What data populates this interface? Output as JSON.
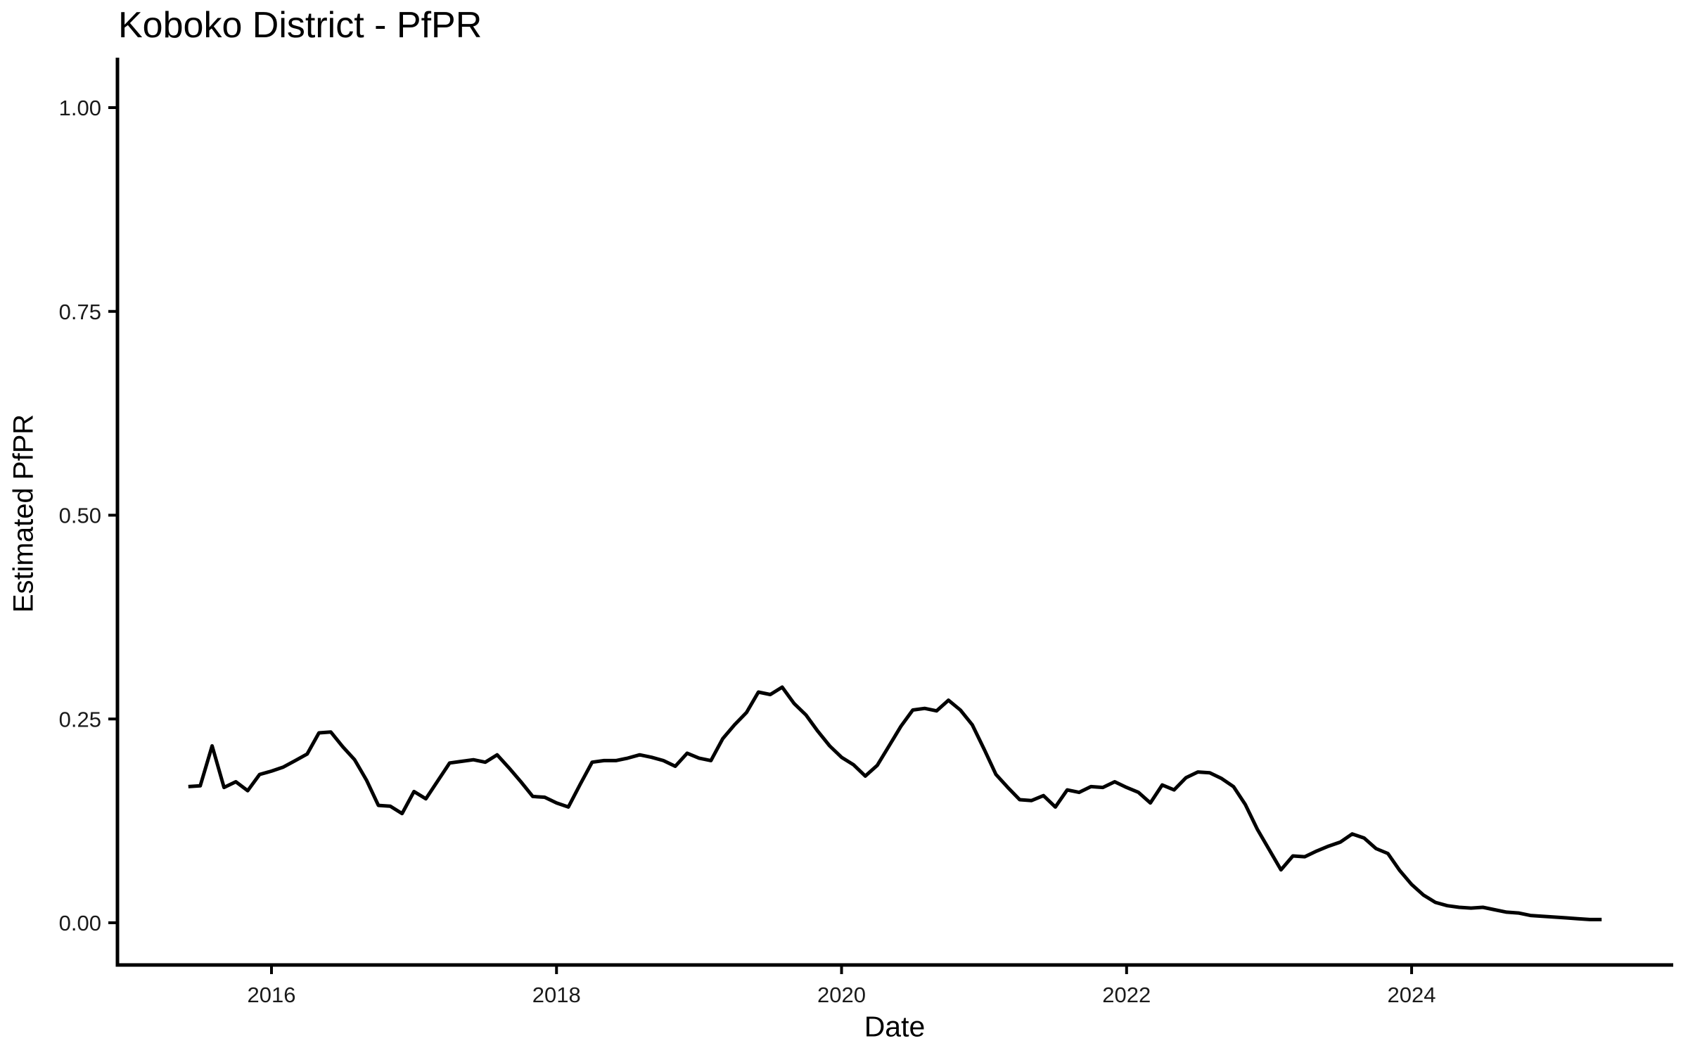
{
  "chart_data": {
    "type": "line",
    "title": "Koboko District - PfPR",
    "xlabel": "Date",
    "ylabel": "Estimated PfPR",
    "x_ticks": [
      "2016",
      "2018",
      "2020",
      "2022",
      "2024"
    ],
    "y_ticks": [
      "1.00",
      "0.75",
      "0.50",
      "0.25",
      "0.00"
    ],
    "ylim": [
      0,
      1
    ],
    "x_range_months": [
      "2015-06",
      "2025-05"
    ],
    "grid": "off",
    "legend": "none",
    "line_color": "#000000",
    "axis_color": "#000000",
    "background_color": "#ffffff",
    "series": [
      {
        "name": "Estimated PfPR",
        "points": [
          [
            "2015-06",
            0.167
          ],
          [
            "2015-07",
            0.168
          ],
          [
            "2015-08",
            0.217
          ],
          [
            "2015-09",
            0.166
          ],
          [
            "2015-10",
            0.173
          ],
          [
            "2015-11",
            0.162
          ],
          [
            "2015-12",
            0.182
          ],
          [
            "2016-01",
            0.186
          ],
          [
            "2016-02",
            0.191
          ],
          [
            "2016-03",
            0.199
          ],
          [
            "2016-04",
            0.207
          ],
          [
            "2016-05",
            0.233
          ],
          [
            "2016-06",
            0.234
          ],
          [
            "2016-07",
            0.216
          ],
          [
            "2016-08",
            0.2
          ],
          [
            "2016-09",
            0.175
          ],
          [
            "2016-10",
            0.144
          ],
          [
            "2016-11",
            0.143
          ],
          [
            "2016-12",
            0.134
          ],
          [
            "2017-01",
            0.161
          ],
          [
            "2017-02",
            0.152
          ],
          [
            "2017-03",
            0.174
          ],
          [
            "2017-04",
            0.196
          ],
          [
            "2017-05",
            0.198
          ],
          [
            "2017-06",
            0.2
          ],
          [
            "2017-07",
            0.197
          ],
          [
            "2017-08",
            0.206
          ],
          [
            "2017-09",
            0.19
          ],
          [
            "2017-10",
            0.173
          ],
          [
            "2017-11",
            0.155
          ],
          [
            "2017-12",
            0.154
          ],
          [
            "2018-01",
            0.147
          ],
          [
            "2018-02",
            0.142
          ],
          [
            "2018-03",
            0.17
          ],
          [
            "2018-04",
            0.197
          ],
          [
            "2018-05",
            0.199
          ],
          [
            "2018-06",
            0.199
          ],
          [
            "2018-07",
            0.202
          ],
          [
            "2018-08",
            0.206
          ],
          [
            "2018-09",
            0.203
          ],
          [
            "2018-10",
            0.199
          ],
          [
            "2018-11",
            0.192
          ],
          [
            "2018-12",
            0.208
          ],
          [
            "2019-01",
            0.202
          ],
          [
            "2019-02",
            0.199
          ],
          [
            "2019-03",
            0.226
          ],
          [
            "2019-04",
            0.243
          ],
          [
            "2019-05",
            0.258
          ],
          [
            "2019-06",
            0.283
          ],
          [
            "2019-07",
            0.28
          ],
          [
            "2019-08",
            0.289
          ],
          [
            "2019-09",
            0.269
          ],
          [
            "2019-10",
            0.255
          ],
          [
            "2019-11",
            0.235
          ],
          [
            "2019-12",
            0.217
          ],
          [
            "2020-01",
            0.203
          ],
          [
            "2020-02",
            0.194
          ],
          [
            "2020-03",
            0.18
          ],
          [
            "2020-04",
            0.193
          ],
          [
            "2020-05",
            0.217
          ],
          [
            "2020-06",
            0.241
          ],
          [
            "2020-07",
            0.261
          ],
          [
            "2020-08",
            0.263
          ],
          [
            "2020-09",
            0.26
          ],
          [
            "2020-10",
            0.273
          ],
          [
            "2020-11",
            0.261
          ],
          [
            "2020-12",
            0.243
          ],
          [
            "2021-01",
            0.213
          ],
          [
            "2021-02",
            0.182
          ],
          [
            "2021-03",
            0.166
          ],
          [
            "2021-04",
            0.151
          ],
          [
            "2021-05",
            0.15
          ],
          [
            "2021-06",
            0.156
          ],
          [
            "2021-07",
            0.142
          ],
          [
            "2021-08",
            0.163
          ],
          [
            "2021-09",
            0.16
          ],
          [
            "2021-10",
            0.167
          ],
          [
            "2021-11",
            0.166
          ],
          [
            "2021-12",
            0.173
          ],
          [
            "2022-01",
            0.166
          ],
          [
            "2022-02",
            0.16
          ],
          [
            "2022-03",
            0.147
          ],
          [
            "2022-04",
            0.169
          ],
          [
            "2022-05",
            0.163
          ],
          [
            "2022-06",
            0.178
          ],
          [
            "2022-07",
            0.185
          ],
          [
            "2022-08",
            0.184
          ],
          [
            "2022-09",
            0.177
          ],
          [
            "2022-10",
            0.167
          ],
          [
            "2022-11",
            0.145
          ],
          [
            "2022-12",
            0.115
          ],
          [
            "2023-01",
            0.09
          ],
          [
            "2023-02",
            0.065
          ],
          [
            "2023-03",
            0.082
          ],
          [
            "2023-04",
            0.081
          ],
          [
            "2023-05",
            0.088
          ],
          [
            "2023-06",
            0.094
          ],
          [
            "2023-07",
            0.099
          ],
          [
            "2023-08",
            0.109
          ],
          [
            "2023-09",
            0.104
          ],
          [
            "2023-10",
            0.091
          ],
          [
            "2023-11",
            0.085
          ],
          [
            "2023-12",
            0.064
          ],
          [
            "2024-01",
            0.047
          ],
          [
            "2024-02",
            0.034
          ],
          [
            "2024-03",
            0.025
          ],
          [
            "2024-04",
            0.021
          ],
          [
            "2024-05",
            0.019
          ],
          [
            "2024-06",
            0.018
          ],
          [
            "2024-07",
            0.019
          ],
          [
            "2024-08",
            0.016
          ],
          [
            "2024-09",
            0.013
          ],
          [
            "2024-10",
            0.012
          ],
          [
            "2024-11",
            0.009
          ],
          [
            "2024-12",
            0.008
          ],
          [
            "2025-01",
            0.007
          ],
          [
            "2025-02",
            0.006
          ],
          [
            "2025-03",
            0.005
          ],
          [
            "2025-04",
            0.004
          ],
          [
            "2025-05",
            0.004
          ]
        ]
      }
    ]
  }
}
